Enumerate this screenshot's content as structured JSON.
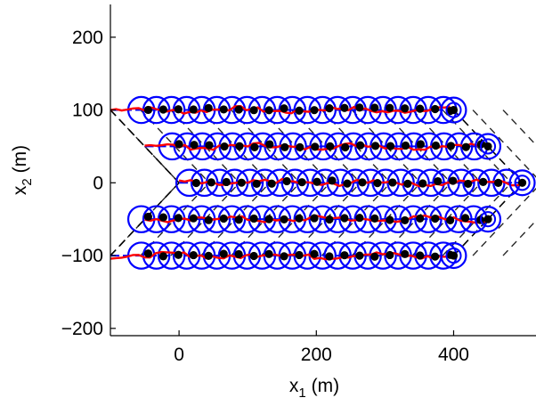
{
  "chart_data": {
    "type": "scatter",
    "title": "",
    "xlabel_base": "x",
    "xlabel_sub": "1",
    "xlabel_unit": " (m)",
    "ylabel_base": "x",
    "ylabel_sub": "2",
    "ylabel_unit": " (m)",
    "xlim": [
      -100,
      520
    ],
    "ylim": [
      -210,
      245
    ],
    "xticks": [
      0,
      200,
      400
    ],
    "xtick_labels": [
      "0",
      "200",
      "400"
    ],
    "yticks": [
      -200,
      -100,
      0,
      100,
      200
    ],
    "ytick_labels": [
      "−200",
      "−100",
      "0",
      "100",
      "200"
    ],
    "grid": false,
    "colors": {
      "circles": "#0000ff",
      "red_traces": "#ff0000",
      "dashed_lines": "#000000",
      "dots": "#000000"
    },
    "rows": [
      {
        "y": 100,
        "x_start": -100,
        "x_end": 395,
        "circle_x_start": -55,
        "circle_x_end": 395,
        "end_marker_x": 400
      },
      {
        "y": 50,
        "x_start": -50,
        "x_end": 450,
        "circle_x_start": -10,
        "circle_x_end": 445,
        "end_marker_x": 450
      },
      {
        "y": 0,
        "x_start": 0,
        "x_end": 500,
        "circle_x_start": 15,
        "circle_x_end": 485,
        "end_marker_x": 500
      },
      {
        "y": -50,
        "x_start": -50,
        "x_end": 450,
        "circle_x_start": -55,
        "circle_x_end": 445,
        "end_marker_x": 450
      },
      {
        "y": -100,
        "x_start": -100,
        "x_end": 395,
        "circle_x_start": -55,
        "circle_x_end": 395,
        "end_marker_x": 400
      }
    ],
    "circle_spacing": 22,
    "circle_radius": 19,
    "dashed_segments": [
      {
        "from": [
          -100,
          100
        ],
        "to": [
          0,
          0
        ]
      },
      {
        "from": [
          -100,
          -100
        ],
        "to": [
          0,
          0
        ]
      },
      {
        "from": [
          400,
          100
        ],
        "to": [
          500,
          0
        ]
      },
      {
        "from": [
          400,
          -100
        ],
        "to": [
          500,
          0
        ]
      }
    ]
  }
}
